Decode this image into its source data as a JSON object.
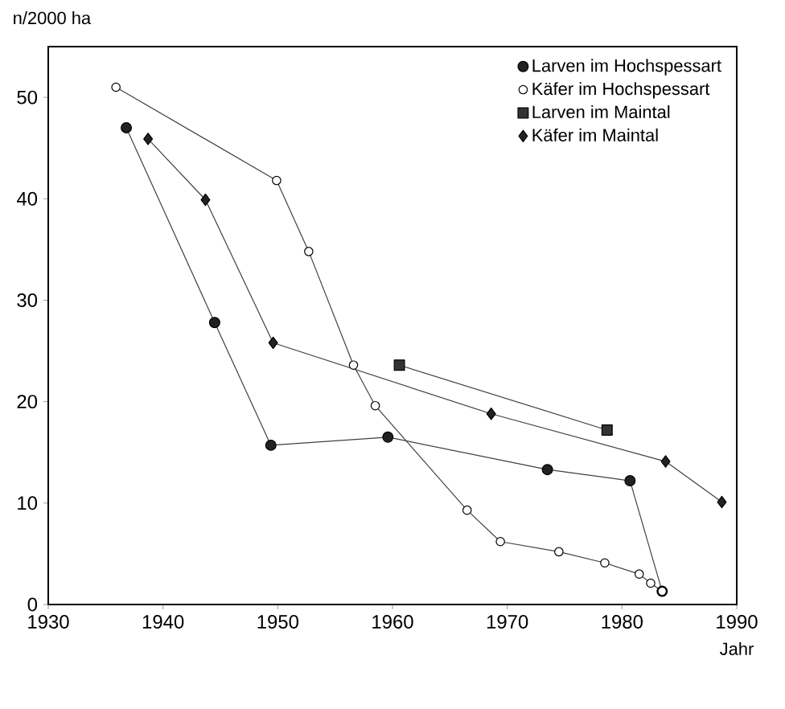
{
  "chart_data": {
    "type": "line",
    "xlabel": "Jahr",
    "ylabel": "n/2000 ha",
    "xlim": [
      1930,
      1990
    ],
    "ylim": [
      0,
      55
    ],
    "xticks": [
      1930,
      1940,
      1950,
      1960,
      1970,
      1980,
      1990
    ],
    "yticks": [
      0,
      10,
      20,
      30,
      40,
      50
    ],
    "grid": false,
    "legend": "top right",
    "line_style": "solid",
    "series": [
      {
        "name": "Larven im Hochspessart",
        "color": "#222222",
        "marker": "circle",
        "x": [
          1936.8,
          1944.5,
          1949.4,
          1959.6,
          1973.5,
          1980.7,
          1983.5
        ],
        "values": [
          47.0,
          27.8,
          15.7,
          16.5,
          13.3,
          12.2,
          1.3
        ]
      },
      {
        "name": "Käfer im Hochspessart",
        "color": "#ffffff",
        "marker": "circle",
        "x": [
          1935.9,
          1949.9,
          1952.7,
          1956.6,
          1958.5,
          1966.5,
          1969.4,
          1974.5,
          1978.5,
          1981.5,
          1982.5,
          1983.5
        ],
        "values": [
          51.0,
          41.8,
          34.8,
          23.6,
          19.6,
          9.3,
          6.2,
          5.2,
          4.1,
          3.0,
          2.1,
          1.3
        ]
      },
      {
        "name": "Larven im Maintal",
        "color": "#333333",
        "marker": "square",
        "x": [
          1960.6,
          1978.7
        ],
        "values": [
          23.6,
          17.2
        ]
      },
      {
        "name": "Käfer im Maintal",
        "color": "#222222",
        "marker": "diamond",
        "x": [
          1938.7,
          1943.7,
          1949.6,
          1968.6,
          1983.8,
          1988.7
        ],
        "values": [
          45.9,
          39.9,
          25.8,
          18.8,
          14.1,
          10.1
        ]
      }
    ]
  }
}
